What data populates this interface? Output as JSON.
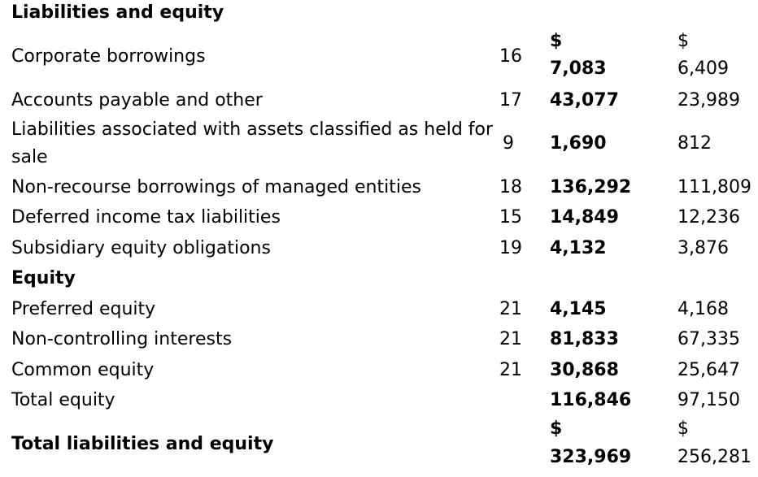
{
  "section_title": "Liabilities and equity",
  "rows": {
    "corporate_borrowings": {
      "label": "Corporate borrowings",
      "note": "16",
      "current_currency": "$",
      "current": "7,083",
      "prior_currency": "$",
      "prior": "6,409"
    },
    "accounts_payable": {
      "label": "Accounts payable and other",
      "note": "17",
      "current": "43,077",
      "prior": "23,989"
    },
    "held_for_sale": {
      "label_line1": "Liabilities associated with assets classified as held for",
      "label_line2": "sale",
      "note": "9",
      "current": "1,690",
      "prior": "812"
    },
    "non_recourse": {
      "label": "Non-recourse borrowings of managed entities",
      "note": "18",
      "current": "136,292",
      "prior": "111,809"
    },
    "deferred_tax": {
      "label": "Deferred income tax liabilities",
      "note": "15",
      "current": "14,849",
      "prior": "12,236"
    },
    "subsidiary_equity": {
      "label": "Subsidiary equity obligations",
      "note": "19",
      "current": "4,132",
      "prior": "3,876"
    },
    "equity_heading": "Equity",
    "preferred_equity": {
      "label": "Preferred equity",
      "note": "21",
      "current": "4,145",
      "prior": "4,168"
    },
    "non_controlling": {
      "label": "Non-controlling interests",
      "note": "21",
      "current": "81,833",
      "prior": "67,335"
    },
    "common_equity": {
      "label": "Common equity",
      "note": "21",
      "current": "30,868",
      "prior": "25,647"
    },
    "total_equity": {
      "label": "Total equity",
      "current": "116,846",
      "prior": "97,150"
    },
    "total_liabilities_equity": {
      "label": "Total liabilities and equity",
      "current_currency": "$",
      "current": "323,969",
      "prior_currency": "$",
      "prior": "256,281"
    }
  }
}
